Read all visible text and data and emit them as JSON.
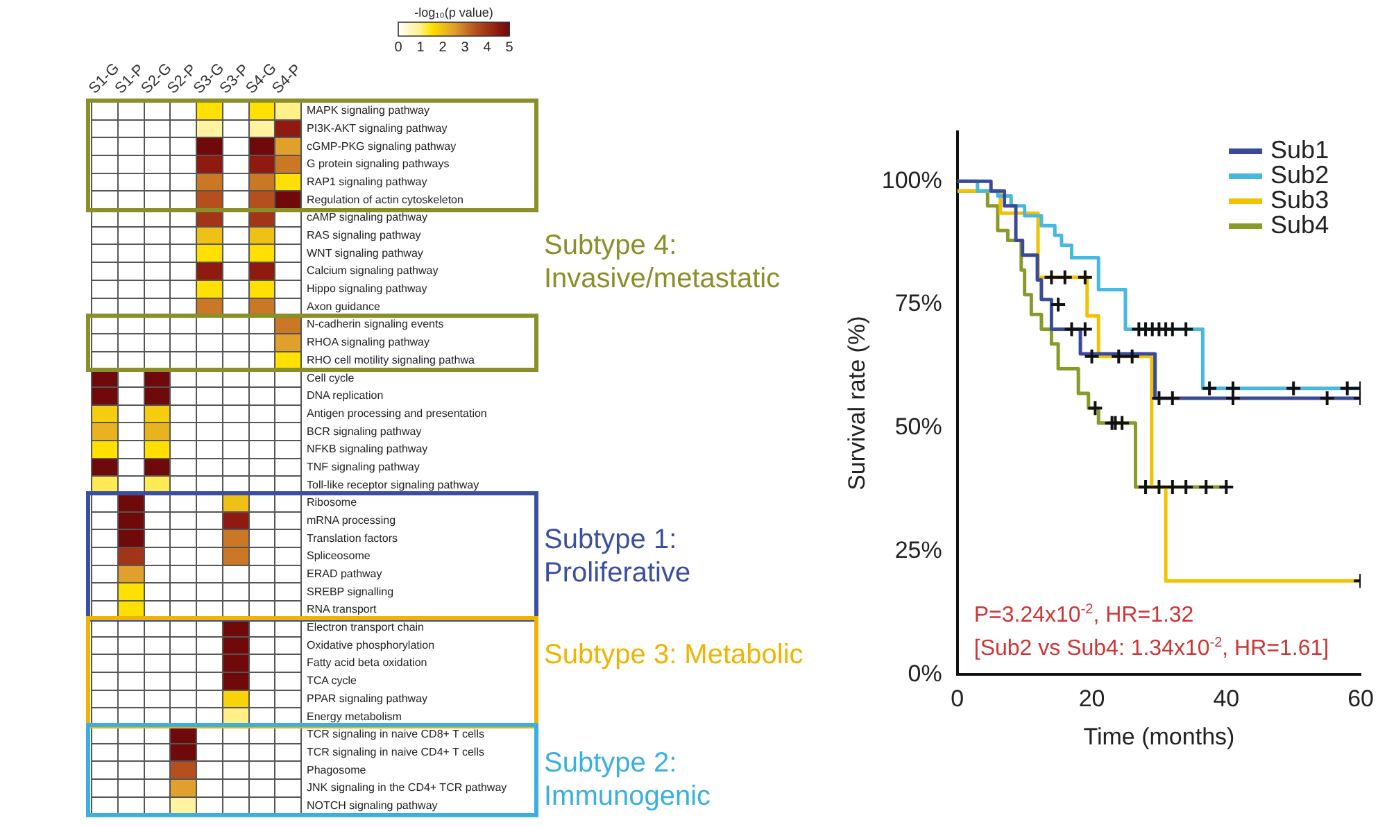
{
  "chart_data": [
    {
      "type": "heatmap",
      "clabel": "-log₁₀(p value)",
      "clim": [
        0,
        5
      ],
      "cticks": [
        0,
        1,
        2,
        3,
        4,
        5
      ],
      "grid": true,
      "categories": [
        "S1-G",
        "S1-P",
        "S2-G",
        "S2-P",
        "S3-G",
        "S3-P",
        "S4-G",
        "S4-P"
      ],
      "y_categories": [
        "MAPK signaling pathway",
        "PI3K-AKT signaling pathway",
        "cGMP-PKG signaling pathway",
        "G protein signaling pathways",
        "RAP1 signaling pathway",
        "Regulation of actin cytoskeleton",
        "cAMP signaling pathway",
        "RAS signaling pathway",
        "WNT signaling pathway",
        "Calcium signaling pathway",
        "Hippo signaling pathway",
        "Axon guidance",
        "N-cadherin signaling events",
        "RHOA signaling pathway",
        "RHO cell motility signaling pathwa",
        "Cell cycle",
        "DNA replication",
        "Antigen processing and presentation",
        "BCR signaling pathway",
        "NFKB signaling pathway",
        "TNF signaling pathway",
        "Toll-like receptor signaling pathway",
        "Ribosome",
        "mRNA processing",
        "Translation factors",
        "Spliceosome",
        "ERAD pathway",
        "SREBP signalling",
        "RNA transport",
        "Electron transport chain",
        "Oxidative phosphorylation",
        "Fatty acid beta oxidation",
        "TCA cycle",
        "PPAR signaling pathway",
        "Energy metabolism",
        "TCR signaling in naive CD8+ T cells",
        "TCR signaling in naive CD4+ T cells",
        "Phagosome",
        "JNK signaling in the CD4+ TCR pathway",
        "NOTCH signaling pathway"
      ],
      "cells": [
        [
          null,
          null,
          null,
          null,
          1.5,
          null,
          1.5,
          1
        ],
        [
          null,
          null,
          null,
          null,
          0.8,
          null,
          0.8,
          4.5
        ],
        [
          null,
          null,
          null,
          null,
          5,
          null,
          5,
          2.5
        ],
        [
          null,
          null,
          null,
          null,
          4.5,
          null,
          4.5,
          3
        ],
        [
          null,
          null,
          null,
          null,
          3,
          null,
          3,
          1.5
        ],
        [
          null,
          null,
          null,
          null,
          3.5,
          null,
          3.5,
          5
        ],
        [
          null,
          null,
          null,
          null,
          4,
          null,
          4,
          null
        ],
        [
          null,
          null,
          null,
          null,
          2,
          null,
          2,
          null
        ],
        [
          null,
          null,
          null,
          null,
          1.5,
          null,
          1.5,
          null
        ],
        [
          null,
          null,
          null,
          null,
          4.5,
          null,
          4.5,
          null
        ],
        [
          null,
          null,
          null,
          null,
          1.5,
          null,
          1.5,
          null
        ],
        [
          null,
          null,
          null,
          null,
          3,
          null,
          3,
          null
        ],
        [
          null,
          null,
          null,
          null,
          null,
          null,
          null,
          3
        ],
        [
          null,
          null,
          null,
          null,
          null,
          null,
          null,
          2.5
        ],
        [
          null,
          null,
          null,
          null,
          null,
          null,
          null,
          1.5
        ],
        [
          5,
          null,
          5,
          null,
          null,
          null,
          null,
          null
        ],
        [
          5,
          null,
          5,
          null,
          null,
          null,
          null,
          null
        ],
        [
          1.8,
          null,
          1.8,
          null,
          null,
          null,
          null,
          null
        ],
        [
          2.2,
          null,
          2.2,
          null,
          null,
          null,
          null,
          null
        ],
        [
          1.5,
          null,
          1.5,
          null,
          null,
          null,
          null,
          null
        ],
        [
          5,
          null,
          5,
          null,
          null,
          null,
          null,
          null
        ],
        [
          1.2,
          null,
          1.2,
          null,
          null,
          null,
          null,
          null
        ],
        [
          null,
          5,
          null,
          null,
          null,
          2,
          null,
          null
        ],
        [
          null,
          5,
          null,
          null,
          null,
          4.5,
          null,
          null
        ],
        [
          null,
          5,
          null,
          null,
          null,
          3,
          null,
          null
        ],
        [
          null,
          4,
          null,
          null,
          null,
          3,
          null,
          null
        ],
        [
          null,
          2.5,
          null,
          null,
          null,
          null,
          null,
          null
        ],
        [
          null,
          1.5,
          null,
          null,
          null,
          null,
          null,
          null
        ],
        [
          null,
          1.5,
          null,
          null,
          null,
          null,
          null,
          null
        ],
        [
          null,
          null,
          null,
          null,
          null,
          5,
          null,
          null
        ],
        [
          null,
          null,
          null,
          null,
          null,
          5,
          null,
          null
        ],
        [
          null,
          null,
          null,
          null,
          null,
          5,
          null,
          null
        ],
        [
          null,
          null,
          null,
          null,
          null,
          5,
          null,
          null
        ],
        [
          null,
          null,
          null,
          null,
          null,
          1.7,
          null,
          null
        ],
        [
          null,
          null,
          null,
          null,
          null,
          1,
          null,
          null
        ],
        [
          null,
          null,
          null,
          5,
          null,
          null,
          null,
          null
        ],
        [
          null,
          null,
          null,
          5,
          null,
          null,
          null,
          null
        ],
        [
          null,
          null,
          null,
          3.5,
          null,
          null,
          null,
          null
        ],
        [
          null,
          null,
          null,
          2.5,
          null,
          null,
          null,
          null
        ],
        [
          null,
          null,
          null,
          0.8,
          null,
          null,
          null,
          null
        ]
      ],
      "annotations": [
        "Subtype 4: Invasive/metastatic",
        "Subtype 1: Proliferative",
        "Subtype 3: Metabolic",
        "Subtype 2: Immunogenic"
      ]
    },
    {
      "type": "step",
      "xlabel": "Time (months)",
      "ylabel": "Survival rate (%)",
      "xlim": [
        0,
        60
      ],
      "xticks": [
        0,
        20,
        40,
        60
      ],
      "ylim": [
        0,
        110
      ],
      "yticks": [
        {
          "value": 0,
          "label": "0%"
        },
        {
          "value": 25,
          "label": "25%"
        },
        {
          "value": 50,
          "label": "50%"
        },
        {
          "value": 75,
          "label": "75%"
        },
        {
          "value": 100,
          "label": "100%"
        }
      ],
      "grid": false,
      "legend": "top right",
      "series": [
        {
          "name": "Sub1",
          "color": "#3a4a9a",
          "x": [
            0,
            5,
            7,
            8.7,
            9.7,
            11.9,
            12.5,
            14,
            18.3,
            29.4,
            60
          ],
          "values": [
            100,
            98,
            95,
            88,
            85,
            80,
            76,
            70,
            65,
            56,
            56
          ]
        },
        {
          "name": "Sub2",
          "color": "#48b8e0",
          "x": [
            0,
            3,
            6,
            8,
            10,
            12.5,
            14.5,
            15.5,
            17,
            21,
            25,
            36.5,
            60
          ],
          "values": [
            100,
            98,
            97,
            95,
            93,
            91,
            89,
            87,
            84.5,
            78,
            70,
            58,
            58
          ]
        },
        {
          "name": "Sub3",
          "color": "#f2c200",
          "x": [
            0,
            6.4,
            12,
            19.3,
            21,
            28.9,
            31,
            60
          ],
          "values": [
            98,
            93.5,
            80.5,
            72.7,
            64.5,
            38,
            19,
            19
          ]
        },
        {
          "name": "Sub4",
          "color": "#8a9a2a",
          "x": [
            0,
            4.5,
            6,
            7.5,
            9.5,
            10,
            11,
            12.5,
            14,
            15,
            18,
            19.5,
            21,
            26.5,
            40
          ],
          "values": [
            98,
            95,
            90,
            88,
            82,
            77,
            73,
            70,
            67,
            62,
            57,
            54,
            51,
            38,
            38
          ]
        },
        {
          "type": "scatter",
          "color": "#111111",
          "marker": "cross",
          "x": [
            15,
            17,
            19,
            30,
            32,
            41,
            55,
            60,
            27,
            28,
            29,
            30,
            31,
            32,
            34,
            37.5,
            41,
            50,
            58,
            60,
            14,
            16,
            19,
            20,
            24,
            26,
            60,
            20.5,
            23,
            23.5,
            24.5,
            28,
            30,
            32,
            34,
            37,
            40
          ],
          "values": [
            75,
            70,
            70,
            56,
            56,
            56,
            56,
            56,
            70,
            70,
            70,
            70,
            70,
            70,
            70,
            58,
            58,
            58,
            58,
            58,
            80.5,
            80.5,
            80.5,
            64.5,
            64.5,
            64.5,
            19,
            54,
            51,
            51,
            51,
            38,
            38,
            38,
            38,
            38,
            38
          ]
        }
      ],
      "annotations": [
        "P=3.24x10$^{-2}$, HR=1.32",
        "[Sub2 vs Sub4: 1.34x10$^{-2}$, HR=1.61]"
      ]
    }
  ]
}
